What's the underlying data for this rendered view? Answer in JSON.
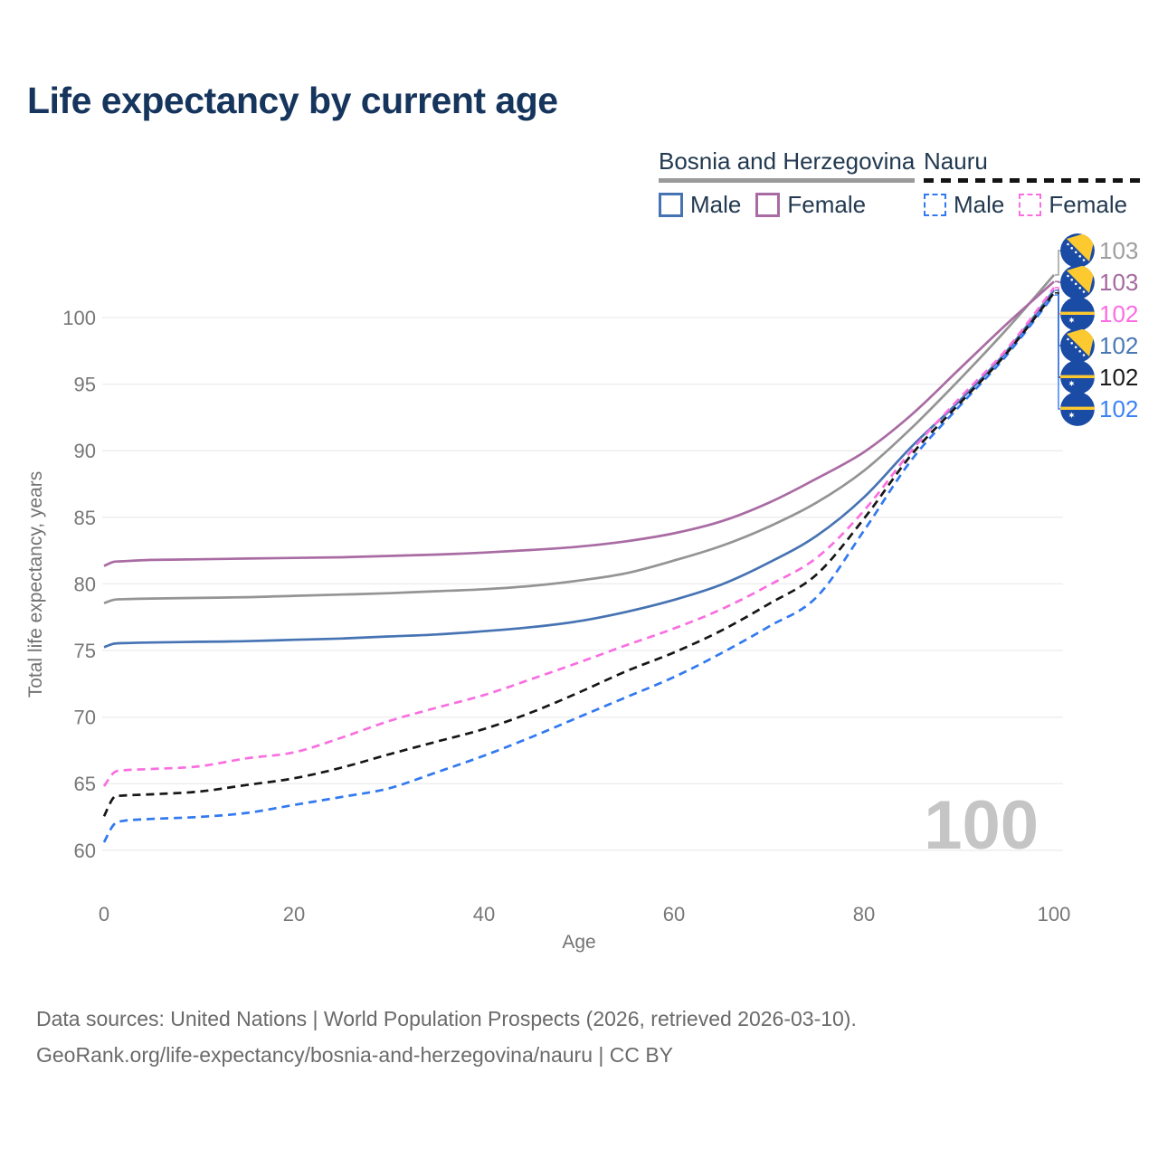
{
  "page": {
    "title": "Life expectancy by current age",
    "background": "#ffffff",
    "title_color": "#16355d"
  },
  "legend": {
    "groups": [
      {
        "label": "Bosnia and Herzegovina",
        "line_style": "solid",
        "underline_color": "#9a9a9a",
        "items": [
          {
            "label": "Male",
            "color": "#4673b3",
            "dashed": false
          },
          {
            "label": "Female",
            "color": "#a96ba3",
            "dashed": false
          }
        ]
      },
      {
        "label": "Nauru",
        "line_style": "dashed",
        "underline_color": "#141414",
        "items": [
          {
            "label": "Male",
            "color": "#3279f0",
            "dashed": true
          },
          {
            "label": "Female",
            "color": "#f96fe0",
            "dashed": true
          }
        ]
      }
    ]
  },
  "footer": {
    "line1": "Data sources: United Nations | World Population Prospects (2026, retrieved 2026-03-10).",
    "line2": "GeoRank.org/life-expectancy/bosnia-and-herzegovina/nauru | CC BY"
  },
  "chart_data": {
    "type": "line",
    "title": "Life expectancy by current age",
    "xlabel": "Age",
    "ylabel": "Total life expectancy, years",
    "xlim": [
      0,
      100
    ],
    "ylim": [
      60,
      100
    ],
    "xticks": [
      0,
      20,
      40,
      60,
      80,
      100
    ],
    "yticks": [
      60,
      65,
      70,
      75,
      80,
      85,
      90,
      95,
      100
    ],
    "grid": "horizontal-only",
    "gridline_color": "#ececec",
    "watermark": "100",
    "series": [
      {
        "id": "bih_male",
        "name": "Bosnia and Herzegovina — Male",
        "country": "Bosnia and Herzegovina",
        "sex": "male",
        "color": "#4673b3",
        "dashed": false,
        "points": [
          [
            0,
            75.25
          ],
          [
            1,
            75.5
          ],
          [
            2,
            75.55
          ],
          [
            5,
            75.6
          ],
          [
            10,
            75.65
          ],
          [
            15,
            75.7
          ],
          [
            20,
            75.8
          ],
          [
            25,
            75.9
          ],
          [
            30,
            76.05
          ],
          [
            35,
            76.2
          ],
          [
            40,
            76.45
          ],
          [
            45,
            76.75
          ],
          [
            50,
            77.2
          ],
          [
            55,
            77.9
          ],
          [
            60,
            78.8
          ],
          [
            65,
            79.95
          ],
          [
            70,
            81.6
          ],
          [
            75,
            83.6
          ],
          [
            80,
            86.5
          ],
          [
            85,
            90.3
          ],
          [
            90,
            93.7
          ],
          [
            95,
            97.45
          ],
          [
            100,
            102.05
          ]
        ]
      },
      {
        "id": "bih_both",
        "name": "Bosnia and Herzegovina — Both sexes",
        "country": "Bosnia and Herzegovina",
        "sex": "both",
        "color": "#949494",
        "dashed": false,
        "points": [
          [
            0,
            78.55
          ],
          [
            1,
            78.8
          ],
          [
            2,
            78.85
          ],
          [
            5,
            78.9
          ],
          [
            10,
            78.95
          ],
          [
            15,
            79.0
          ],
          [
            20,
            79.1
          ],
          [
            25,
            79.2
          ],
          [
            30,
            79.3
          ],
          [
            35,
            79.45
          ],
          [
            40,
            79.6
          ],
          [
            45,
            79.85
          ],
          [
            50,
            80.25
          ],
          [
            55,
            80.8
          ],
          [
            60,
            81.75
          ],
          [
            65,
            82.85
          ],
          [
            70,
            84.3
          ],
          [
            75,
            86.1
          ],
          [
            80,
            88.5
          ],
          [
            85,
            91.7
          ],
          [
            90,
            95.3
          ],
          [
            95,
            99.1
          ],
          [
            100,
            103.2
          ]
        ]
      },
      {
        "id": "bih_female",
        "name": "Bosnia and Herzegovina — Female",
        "country": "Bosnia and Herzegovina",
        "sex": "female",
        "color": "#a96ba3",
        "dashed": false,
        "points": [
          [
            0,
            81.35
          ],
          [
            1,
            81.65
          ],
          [
            2,
            81.7
          ],
          [
            5,
            81.8
          ],
          [
            10,
            81.85
          ],
          [
            15,
            81.9
          ],
          [
            20,
            81.95
          ],
          [
            25,
            82.0
          ],
          [
            30,
            82.1
          ],
          [
            35,
            82.2
          ],
          [
            40,
            82.35
          ],
          [
            45,
            82.55
          ],
          [
            50,
            82.8
          ],
          [
            55,
            83.2
          ],
          [
            60,
            83.8
          ],
          [
            65,
            84.7
          ],
          [
            70,
            86.1
          ],
          [
            75,
            87.9
          ],
          [
            80,
            89.9
          ],
          [
            85,
            92.7
          ],
          [
            90,
            96.1
          ],
          [
            95,
            99.5
          ],
          [
            100,
            102.7
          ]
        ]
      },
      {
        "id": "nauru_male",
        "name": "Nauru — Male",
        "country": "Nauru",
        "sex": "male",
        "color": "#3279f0",
        "dashed": true,
        "points": [
          [
            0,
            60.6
          ],
          [
            1,
            61.9
          ],
          [
            2,
            62.2
          ],
          [
            5,
            62.35
          ],
          [
            10,
            62.5
          ],
          [
            15,
            62.8
          ],
          [
            20,
            63.4
          ],
          [
            25,
            64.0
          ],
          [
            30,
            64.65
          ],
          [
            35,
            65.85
          ],
          [
            40,
            67.1
          ],
          [
            45,
            68.5
          ],
          [
            50,
            70.0
          ],
          [
            55,
            71.5
          ],
          [
            60,
            73.0
          ],
          [
            65,
            74.8
          ],
          [
            70,
            76.8
          ],
          [
            75,
            79.0
          ],
          [
            80,
            84.0
          ],
          [
            85,
            89.3
          ],
          [
            90,
            93.3
          ],
          [
            95,
            97.15
          ],
          [
            100,
            101.7
          ]
        ]
      },
      {
        "id": "nauru_both",
        "name": "Nauru — Both sexes",
        "country": "Nauru",
        "sex": "both",
        "color": "#161616",
        "dashed": true,
        "points": [
          [
            0,
            62.55
          ],
          [
            1,
            63.95
          ],
          [
            2,
            64.1
          ],
          [
            5,
            64.2
          ],
          [
            10,
            64.4
          ],
          [
            15,
            64.9
          ],
          [
            20,
            65.4
          ],
          [
            25,
            66.2
          ],
          [
            30,
            67.2
          ],
          [
            35,
            68.15
          ],
          [
            40,
            69.1
          ],
          [
            45,
            70.35
          ],
          [
            50,
            71.85
          ],
          [
            55,
            73.45
          ],
          [
            60,
            74.85
          ],
          [
            65,
            76.5
          ],
          [
            70,
            78.5
          ],
          [
            75,
            80.7
          ],
          [
            80,
            84.9
          ],
          [
            85,
            89.7
          ],
          [
            90,
            93.5
          ],
          [
            95,
            97.3
          ],
          [
            100,
            101.85
          ]
        ]
      },
      {
        "id": "nauru_female",
        "name": "Nauru — Female",
        "country": "Nauru",
        "sex": "female",
        "color": "#f96fe0",
        "dashed": true,
        "points": [
          [
            0,
            64.8
          ],
          [
            1,
            65.8
          ],
          [
            2,
            66.0
          ],
          [
            5,
            66.1
          ],
          [
            10,
            66.3
          ],
          [
            15,
            66.9
          ],
          [
            20,
            67.35
          ],
          [
            25,
            68.45
          ],
          [
            30,
            69.7
          ],
          [
            35,
            70.7
          ],
          [
            40,
            71.65
          ],
          [
            45,
            72.85
          ],
          [
            50,
            74.1
          ],
          [
            55,
            75.4
          ],
          [
            60,
            76.65
          ],
          [
            65,
            78.1
          ],
          [
            70,
            79.9
          ],
          [
            75,
            81.95
          ],
          [
            80,
            85.5
          ],
          [
            85,
            90.0
          ],
          [
            90,
            93.9
          ],
          [
            95,
            97.6
          ],
          [
            100,
            102.25
          ]
        ]
      }
    ],
    "end_labels": [
      {
        "series_id": "bih_both",
        "value": "103",
        "flag": "bosnia",
        "color": "#9e9e9e"
      },
      {
        "series_id": "bih_female",
        "value": "103",
        "flag": "bosnia",
        "color": "#a4699e"
      },
      {
        "series_id": "nauru_female",
        "value": "102",
        "flag": "nauru",
        "color": "#fe6ae2"
      },
      {
        "series_id": "bih_male",
        "value": "102",
        "flag": "bosnia",
        "color": "#4a77b4"
      },
      {
        "series_id": "nauru_both",
        "value": "102",
        "flag": "nauru",
        "color": "#1a1a1a"
      },
      {
        "series_id": "nauru_male",
        "value": "102",
        "flag": "nauru",
        "color": "#3b82f6"
      }
    ],
    "flag_colors": {
      "blue": "#1a4ba5",
      "yellow": "#fdc930",
      "star": "#ffffff"
    }
  }
}
